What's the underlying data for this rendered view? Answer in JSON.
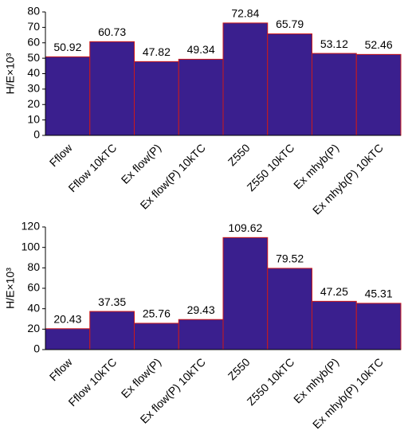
{
  "chart_data": [
    {
      "type": "bar",
      "y_label": "H/E×10³",
      "categories": [
        "Fflow",
        "Fflow 10kTC",
        "Ex flow(P)",
        "Ex flow(P) 10kTC",
        "Z550",
        "Z550 10kTC",
        "Ex mhyb(P)",
        "Ex mhyb(P) 10kTC"
      ],
      "values": [
        50.92,
        60.73,
        47.82,
        49.34,
        72.84,
        65.79,
        53.12,
        52.46
      ],
      "color": "#3a1f8e",
      "edge_color": "#cc1a1a",
      "ylim": [
        0,
        80
      ],
      "yticks": [
        0,
        10,
        20,
        30,
        40,
        50,
        60,
        70,
        80
      ],
      "grid": false
    },
    {
      "type": "bar",
      "y_label": "H/E×10³",
      "categories": [
        "Fflow",
        "Fflow 10kTC",
        "Ex flow(P)",
        "Ex flow(P) 10kTC",
        "Z550",
        "Z550 10kTC",
        "Ex mhyb(P)",
        "Ex mhyb(P) 10kTC"
      ],
      "values": [
        20.43,
        37.35,
        25.76,
        29.43,
        109.62,
        79.52,
        47.25,
        45.31
      ],
      "color": "#3a1f8e",
      "edge_color": "#cc1a1a",
      "ylim": [
        0,
        120
      ],
      "yticks": [
        0,
        20,
        40,
        60,
        80,
        100,
        120
      ],
      "grid": false
    }
  ]
}
